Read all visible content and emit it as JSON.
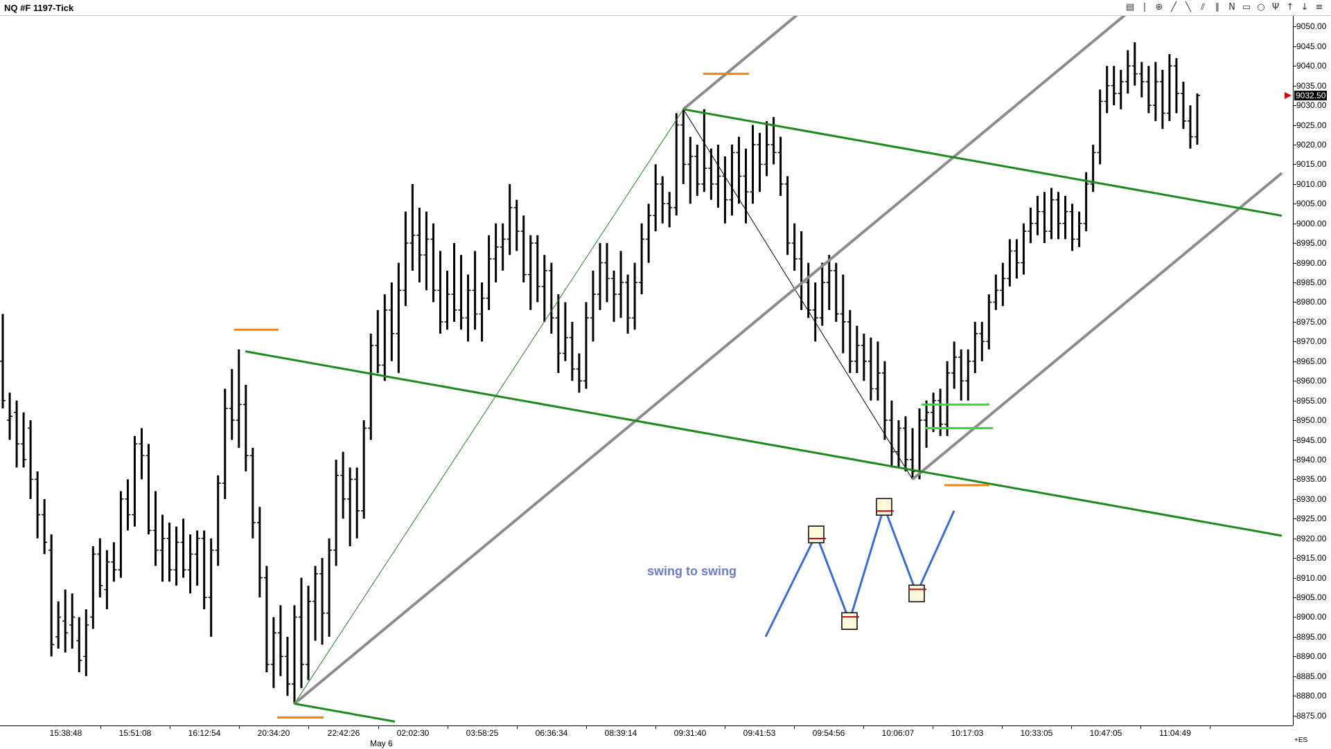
{
  "window": {
    "title": "NQ #F  1197-Tick"
  },
  "toolbar": {
    "icons": [
      "chart-type-icon",
      "bar-type-icon",
      "crosshair-icon",
      "line-tool-icon",
      "trend-line-icon",
      "channel-icon",
      "parallel-lines-icon",
      "n-wave-icon",
      "rectangle-icon",
      "circle-icon",
      "pitchfork-icon",
      "arrow-up-icon",
      "arrow-down-icon",
      "indicator-icon"
    ]
  },
  "price_axis": {
    "ticks": [
      "9050.00",
      "9045.00",
      "9040.00",
      "9035.00",
      "9030.00",
      "9025.00",
      "9020.00",
      "9015.00",
      "9010.00",
      "9005.00",
      "9000.00",
      "8995.00",
      "8990.00",
      "8985.00",
      "8980.00",
      "8975.00",
      "8970.00",
      "8965.00",
      "8960.00",
      "8955.00",
      "8950.00",
      "8945.00",
      "8940.00",
      "8935.00",
      "8930.00",
      "8925.00",
      "8920.00",
      "8915.00",
      "8910.00",
      "8905.00",
      "8900.00",
      "8895.00",
      "8890.00",
      "8885.00",
      "8880.00",
      "8875.00"
    ],
    "last_price": "9032.50",
    "marker_color": "#e00000"
  },
  "time_axis": {
    "ticks": [
      "15:38:48",
      "15:51:08",
      "16:12:54",
      "20:34:20",
      "22:42:26",
      "02:02:30",
      "03:58:25",
      "06:36:34",
      "08:39:14",
      "09:31:40",
      "09:41:53",
      "09:54:56",
      "10:06:07",
      "10:17:03",
      "10:33:05",
      "10:47:05",
      "11:04:49"
    ],
    "date_label": "May 6",
    "corner_label": "+ES"
  },
  "annotation": {
    "text": "swing to swing"
  },
  "colors": {
    "bars": "#000000",
    "channel_gray": "#8c8c8c",
    "channel_green": "#1a8a1a",
    "highlight_green": "#33dd33",
    "orange": "#ff7f00",
    "swing_blue": "#3a6bd6"
  },
  "chart_data": {
    "type": "ohlc",
    "instrument": "NQ #F",
    "y_range": [
      8873.0,
      9052.0
    ],
    "ohlc": [
      {
        "o": 8965,
        "h": 8977,
        "l": 8953,
        "c": 8955
      },
      {
        "o": 8950,
        "h": 8957,
        "l": 8945,
        "c": 8951
      },
      {
        "o": 8952,
        "h": 8955,
        "l": 8938,
        "c": 8944
      },
      {
        "o": 8944,
        "h": 8952,
        "l": 8938,
        "c": 8940
      },
      {
        "o": 8948,
        "h": 8950,
        "l": 8930,
        "c": 8935
      },
      {
        "o": 8935,
        "h": 8937,
        "l": 8920,
        "c": 8926
      },
      {
        "o": 8926,
        "h": 8930,
        "l": 8916,
        "c": 8919
      },
      {
        "o": 8917,
        "h": 8921,
        "l": 8890,
        "c": 8893
      },
      {
        "o": 8895,
        "h": 8904,
        "l": 8892,
        "c": 8900
      },
      {
        "o": 8899,
        "h": 8907,
        "l": 8891,
        "c": 8896
      },
      {
        "o": 8898,
        "h": 8906,
        "l": 8892,
        "c": 8900
      },
      {
        "o": 8894,
        "h": 8900,
        "l": 8886,
        "c": 8889
      },
      {
        "o": 8890,
        "h": 8902,
        "l": 8885,
        "c": 8898
      },
      {
        "o": 8900,
        "h": 8918,
        "l": 8897,
        "c": 8916
      },
      {
        "o": 8916,
        "h": 8920,
        "l": 8905,
        "c": 8908
      },
      {
        "o": 8907,
        "h": 8917,
        "l": 8902,
        "c": 8914
      },
      {
        "o": 8914,
        "h": 8919,
        "l": 8909,
        "c": 8912
      },
      {
        "o": 8912,
        "h": 8932,
        "l": 8910,
        "c": 8930
      },
      {
        "o": 8930,
        "h": 8935,
        "l": 8922,
        "c": 8926
      },
      {
        "o": 8926,
        "h": 8946,
        "l": 8923,
        "c": 8944
      },
      {
        "o": 8944,
        "h": 8948,
        "l": 8935,
        "c": 8941
      },
      {
        "o": 8941,
        "h": 8944,
        "l": 8921,
        "c": 8922
      },
      {
        "o": 8922,
        "h": 8932,
        "l": 8913,
        "c": 8917
      },
      {
        "o": 8917,
        "h": 8926,
        "l": 8909,
        "c": 8920
      },
      {
        "o": 8920,
        "h": 8924,
        "l": 8909,
        "c": 8912
      },
      {
        "o": 8912,
        "h": 8923,
        "l": 8908,
        "c": 8919
      },
      {
        "o": 8919,
        "h": 8925,
        "l": 8910,
        "c": 8912
      },
      {
        "o": 8912,
        "h": 8921,
        "l": 8906,
        "c": 8916
      },
      {
        "o": 8916,
        "h": 8922,
        "l": 8908,
        "c": 8920
      },
      {
        "o": 8920,
        "h": 8922,
        "l": 8902,
        "c": 8905
      },
      {
        "o": 8905,
        "h": 8920,
        "l": 8895,
        "c": 8917
      },
      {
        "o": 8917,
        "h": 8936,
        "l": 8913,
        "c": 8934
      },
      {
        "o": 8934,
        "h": 8958,
        "l": 8930,
        "c": 8953
      },
      {
        "o": 8953,
        "h": 8963,
        "l": 8945,
        "c": 8950
      },
      {
        "o": 8950,
        "h": 8968,
        "l": 8943,
        "c": 8954
      },
      {
        "o": 8954,
        "h": 8959,
        "l": 8937,
        "c": 8941
      },
      {
        "o": 8941,
        "h": 8943,
        "l": 8920,
        "c": 8924
      },
      {
        "o": 8924,
        "h": 8928,
        "l": 8905,
        "c": 8910
      },
      {
        "o": 8910,
        "h": 8913,
        "l": 8886,
        "c": 8888
      },
      {
        "o": 8888,
        "h": 8900,
        "l": 8882,
        "c": 8896
      },
      {
        "o": 8896,
        "h": 8903,
        "l": 8885,
        "c": 8890
      },
      {
        "o": 8890,
        "h": 8895,
        "l": 8880,
        "c": 8883
      },
      {
        "o": 8883,
        "h": 8903,
        "l": 8878,
        "c": 8900
      },
      {
        "o": 8900,
        "h": 8910,
        "l": 8882,
        "c": 8888
      },
      {
        "o": 8888,
        "h": 8908,
        "l": 8884,
        "c": 8904
      },
      {
        "o": 8904,
        "h": 8913,
        "l": 8894,
        "c": 8911
      },
      {
        "o": 8911,
        "h": 8915,
        "l": 8893,
        "c": 8901
      },
      {
        "o": 8901,
        "h": 8920,
        "l": 8895,
        "c": 8917
      },
      {
        "o": 8917,
        "h": 8940,
        "l": 8913,
        "c": 8936
      },
      {
        "o": 8936,
        "h": 8942,
        "l": 8925,
        "c": 8930
      },
      {
        "o": 8930,
        "h": 8938,
        "l": 8918,
        "c": 8935
      },
      {
        "o": 8935,
        "h": 8938,
        "l": 8920,
        "c": 8927
      },
      {
        "o": 8927,
        "h": 8950,
        "l": 8925,
        "c": 8948
      },
      {
        "o": 8948,
        "h": 8972,
        "l": 8945,
        "c": 8969
      },
      {
        "o": 8969,
        "h": 8978,
        "l": 8962,
        "c": 8964
      },
      {
        "o": 8964,
        "h": 8982,
        "l": 8960,
        "c": 8978
      },
      {
        "o": 8978,
        "h": 8985,
        "l": 8965,
        "c": 8972
      },
      {
        "o": 8972,
        "h": 8990,
        "l": 8962,
        "c": 8983
      },
      {
        "o": 8983,
        "h": 9003,
        "l": 8979,
        "c": 8995
      },
      {
        "o": 8995,
        "h": 9010,
        "l": 8988,
        "c": 8997
      },
      {
        "o": 8997,
        "h": 9004,
        "l": 8985,
        "c": 8992
      },
      {
        "o": 8992,
        "h": 9003,
        "l": 8983,
        "c": 8996
      },
      {
        "o": 8996,
        "h": 9000,
        "l": 8980,
        "c": 8983
      },
      {
        "o": 8983,
        "h": 8993,
        "l": 8972,
        "c": 8975
      },
      {
        "o": 8975,
        "h": 8988,
        "l": 8973,
        "c": 8982
      },
      {
        "o": 8982,
        "h": 8995,
        "l": 8975,
        "c": 8978
      },
      {
        "o": 8978,
        "h": 8992,
        "l": 8973,
        "c": 8976
      },
      {
        "o": 8976,
        "h": 8987,
        "l": 8970,
        "c": 8983
      },
      {
        "o": 8983,
        "h": 8993,
        "l": 8973,
        "c": 8977
      },
      {
        "o": 8977,
        "h": 8985,
        "l": 8970,
        "c": 8981
      },
      {
        "o": 8981,
        "h": 8997,
        "l": 8978,
        "c": 8991
      },
      {
        "o": 8991,
        "h": 9000,
        "l": 8985,
        "c": 8994
      },
      {
        "o": 8994,
        "h": 9000,
        "l": 8988,
        "c": 8996
      },
      {
        "o": 8996,
        "h": 9010,
        "l": 8992,
        "c": 9004
      },
      {
        "o": 9004,
        "h": 9006,
        "l": 8993,
        "c": 8998
      },
      {
        "o": 8998,
        "h": 9002,
        "l": 8985,
        "c": 8987
      },
      {
        "o": 8987,
        "h": 8997,
        "l": 8978,
        "c": 8995
      },
      {
        "o": 8995,
        "h": 8997,
        "l": 8980,
        "c": 8984
      },
      {
        "o": 8984,
        "h": 8992,
        "l": 8975,
        "c": 8988
      },
      {
        "o": 8988,
        "h": 8990,
        "l": 8972,
        "c": 8976
      },
      {
        "o": 8976,
        "h": 8982,
        "l": 8962,
        "c": 8967
      },
      {
        "o": 8967,
        "h": 8980,
        "l": 8965,
        "c": 8971
      },
      {
        "o": 8971,
        "h": 8975,
        "l": 8960,
        "c": 8963
      },
      {
        "o": 8963,
        "h": 8967,
        "l": 8957,
        "c": 8960
      },
      {
        "o": 8960,
        "h": 8980,
        "l": 8958,
        "c": 8976
      },
      {
        "o": 8976,
        "h": 8988,
        "l": 8970,
        "c": 8982
      },
      {
        "o": 8982,
        "h": 8995,
        "l": 8978,
        "c": 8990
      },
      {
        "o": 8990,
        "h": 8995,
        "l": 8980,
        "c": 8986
      },
      {
        "o": 8986,
        "h": 8988,
        "l": 8975,
        "c": 8982
      },
      {
        "o": 8982,
        "h": 8993,
        "l": 8976,
        "c": 8985
      },
      {
        "o": 8985,
        "h": 8987,
        "l": 8972,
        "c": 8976
      },
      {
        "o": 8976,
        "h": 8990,
        "l": 8973,
        "c": 8985
      },
      {
        "o": 8985,
        "h": 9000,
        "l": 8982,
        "c": 8996
      },
      {
        "o": 8996,
        "h": 9005,
        "l": 8990,
        "c": 9002
      },
      {
        "o": 9002,
        "h": 9015,
        "l": 8998,
        "c": 9010
      },
      {
        "o": 9010,
        "h": 9012,
        "l": 9000,
        "c": 9005
      },
      {
        "o": 9005,
        "h": 9008,
        "l": 8999,
        "c": 9004
      },
      {
        "o": 9004,
        "h": 9028,
        "l": 9002,
        "c": 9025
      },
      {
        "o": 9025,
        "h": 9029,
        "l": 9010,
        "c": 9015
      },
      {
        "o": 9015,
        "h": 9022,
        "l": 9005,
        "c": 9017
      },
      {
        "o": 9017,
        "h": 9020,
        "l": 9007,
        "c": 9010
      },
      {
        "o": 9010,
        "h": 9029,
        "l": 9008,
        "c": 9014
      },
      {
        "o": 9014,
        "h": 9019,
        "l": 9006,
        "c": 9010
      },
      {
        "o": 9010,
        "h": 9020,
        "l": 9004,
        "c": 9012
      },
      {
        "o": 9012,
        "h": 9017,
        "l": 9000,
        "c": 9006
      },
      {
        "o": 9006,
        "h": 9020,
        "l": 9002,
        "c": 9018
      },
      {
        "o": 9018,
        "h": 9022,
        "l": 9005,
        "c": 9012
      },
      {
        "o": 9012,
        "h": 9019,
        "l": 9000,
        "c": 9008
      },
      {
        "o": 9008,
        "h": 9025,
        "l": 9005,
        "c": 9020
      },
      {
        "o": 9020,
        "h": 9023,
        "l": 9008,
        "c": 9015
      },
      {
        "o": 9015,
        "h": 9026,
        "l": 9012,
        "c": 9020
      },
      {
        "o": 9020,
        "h": 9027,
        "l": 9015,
        "c": 9018
      },
      {
        "o": 9018,
        "h": 9022,
        "l": 9007,
        "c": 9010
      },
      {
        "o": 9010,
        "h": 9012,
        "l": 8992,
        "c": 8995
      },
      {
        "o": 8995,
        "h": 9000,
        "l": 8988,
        "c": 8991
      },
      {
        "o": 8991,
        "h": 8998,
        "l": 8978,
        "c": 8985
      },
      {
        "o": 8985,
        "h": 8990,
        "l": 8976,
        "c": 8978
      },
      {
        "o": 8978,
        "h": 8985,
        "l": 8970,
        "c": 8976
      },
      {
        "o": 8976,
        "h": 8990,
        "l": 8974,
        "c": 8985
      },
      {
        "o": 8985,
        "h": 8992,
        "l": 8978,
        "c": 8988
      },
      {
        "o": 8988,
        "h": 8990,
        "l": 8975,
        "c": 8977
      },
      {
        "o": 8977,
        "h": 8987,
        "l": 8967,
        "c": 8975
      },
      {
        "o": 8975,
        "h": 8978,
        "l": 8962,
        "c": 8965
      },
      {
        "o": 8965,
        "h": 8974,
        "l": 8962,
        "c": 8969
      },
      {
        "o": 8969,
        "h": 8972,
        "l": 8960,
        "c": 8965
      },
      {
        "o": 8965,
        "h": 8971,
        "l": 8955,
        "c": 8958
      },
      {
        "o": 8958,
        "h": 8970,
        "l": 8955,
        "c": 8962
      },
      {
        "o": 8962,
        "h": 8965,
        "l": 8945,
        "c": 8950
      },
      {
        "o": 8950,
        "h": 8955,
        "l": 8938,
        "c": 8942
      },
      {
        "o": 8942,
        "h": 8950,
        "l": 8938,
        "c": 8948
      },
      {
        "o": 8948,
        "h": 8951,
        "l": 8937,
        "c": 8940
      },
      {
        "o": 8940,
        "h": 8948,
        "l": 8935,
        "c": 8937
      },
      {
        "o": 8937,
        "h": 8953,
        "l": 8935,
        "c": 8950
      },
      {
        "o": 8950,
        "h": 8955,
        "l": 8943,
        "c": 8952
      },
      {
        "o": 8952,
        "h": 8957,
        "l": 8947,
        "c": 8955
      },
      {
        "o": 8955,
        "h": 8958,
        "l": 8946,
        "c": 8949
      },
      {
        "o": 8949,
        "h": 8965,
        "l": 8946,
        "c": 8962
      },
      {
        "o": 8962,
        "h": 8970,
        "l": 8958,
        "c": 8966
      },
      {
        "o": 8966,
        "h": 8968,
        "l": 8955,
        "c": 8960
      },
      {
        "o": 8960,
        "h": 8968,
        "l": 8955,
        "c": 8965
      },
      {
        "o": 8965,
        "h": 8975,
        "l": 8962,
        "c": 8972
      },
      {
        "o": 8972,
        "h": 8975,
        "l": 8965,
        "c": 8970
      },
      {
        "o": 8970,
        "h": 8982,
        "l": 8968,
        "c": 8980
      },
      {
        "o": 8980,
        "h": 8987,
        "l": 8978,
        "c": 8983
      },
      {
        "o": 8983,
        "h": 8990,
        "l": 8979,
        "c": 8986
      },
      {
        "o": 8986,
        "h": 8996,
        "l": 8984,
        "c": 8993
      },
      {
        "o": 8993,
        "h": 8996,
        "l": 8986,
        "c": 8990
      },
      {
        "o": 8990,
        "h": 9000,
        "l": 8987,
        "c": 8998
      },
      {
        "o": 8998,
        "h": 9004,
        "l": 8995,
        "c": 9000
      },
      {
        "o": 9000,
        "h": 9007,
        "l": 8997,
        "c": 9003
      },
      {
        "o": 9003,
        "h": 9008,
        "l": 8995,
        "c": 8998
      },
      {
        "o": 8998,
        "h": 9009,
        "l": 8996,
        "c": 9006
      },
      {
        "o": 9006,
        "h": 9008,
        "l": 8996,
        "c": 9000
      },
      {
        "o": 9000,
        "h": 9007,
        "l": 8996,
        "c": 9003
      },
      {
        "o": 9003,
        "h": 9005,
        "l": 8993,
        "c": 8996
      },
      {
        "o": 8996,
        "h": 9003,
        "l": 8994,
        "c": 9000
      },
      {
        "o": 9000,
        "h": 9013,
        "l": 8998,
        "c": 9010
      },
      {
        "o": 9010,
        "h": 9020,
        "l": 9008,
        "c": 9018
      },
      {
        "o": 9018,
        "h": 9034,
        "l": 9015,
        "c": 9031
      },
      {
        "o": 9031,
        "h": 9040,
        "l": 9028,
        "c": 9035
      },
      {
        "o": 9035,
        "h": 9040,
        "l": 9030,
        "c": 9033
      },
      {
        "o": 9033,
        "h": 9039,
        "l": 9029,
        "c": 9036
      },
      {
        "o": 9036,
        "h": 9044,
        "l": 9033,
        "c": 9040
      },
      {
        "o": 9040,
        "h": 9046,
        "l": 9035,
        "c": 9038
      },
      {
        "o": 9038,
        "h": 9041,
        "l": 9032,
        "c": 9036
      },
      {
        "o": 9036,
        "h": 9040,
        "l": 9028,
        "c": 9030
      },
      {
        "o": 9030,
        "h": 9041,
        "l": 9026,
        "c": 9036
      },
      {
        "o": 9036,
        "h": 9039,
        "l": 9024,
        "c": 9028
      },
      {
        "o": 9028,
        "h": 9043,
        "l": 9026,
        "c": 9040
      },
      {
        "o": 9040,
        "h": 9042,
        "l": 9028,
        "c": 9033
      },
      {
        "o": 9033,
        "h": 9036,
        "l": 9024,
        "c": 9026
      },
      {
        "o": 9026,
        "h": 9030,
        "l": 9019,
        "c": 9022
      },
      {
        "o": 9022,
        "h": 9033,
        "l": 9020,
        "c": 9032.5
      }
    ],
    "swing_to_swing": [
      8895,
      8921,
      8899,
      8928,
      8906,
      8927
    ]
  }
}
